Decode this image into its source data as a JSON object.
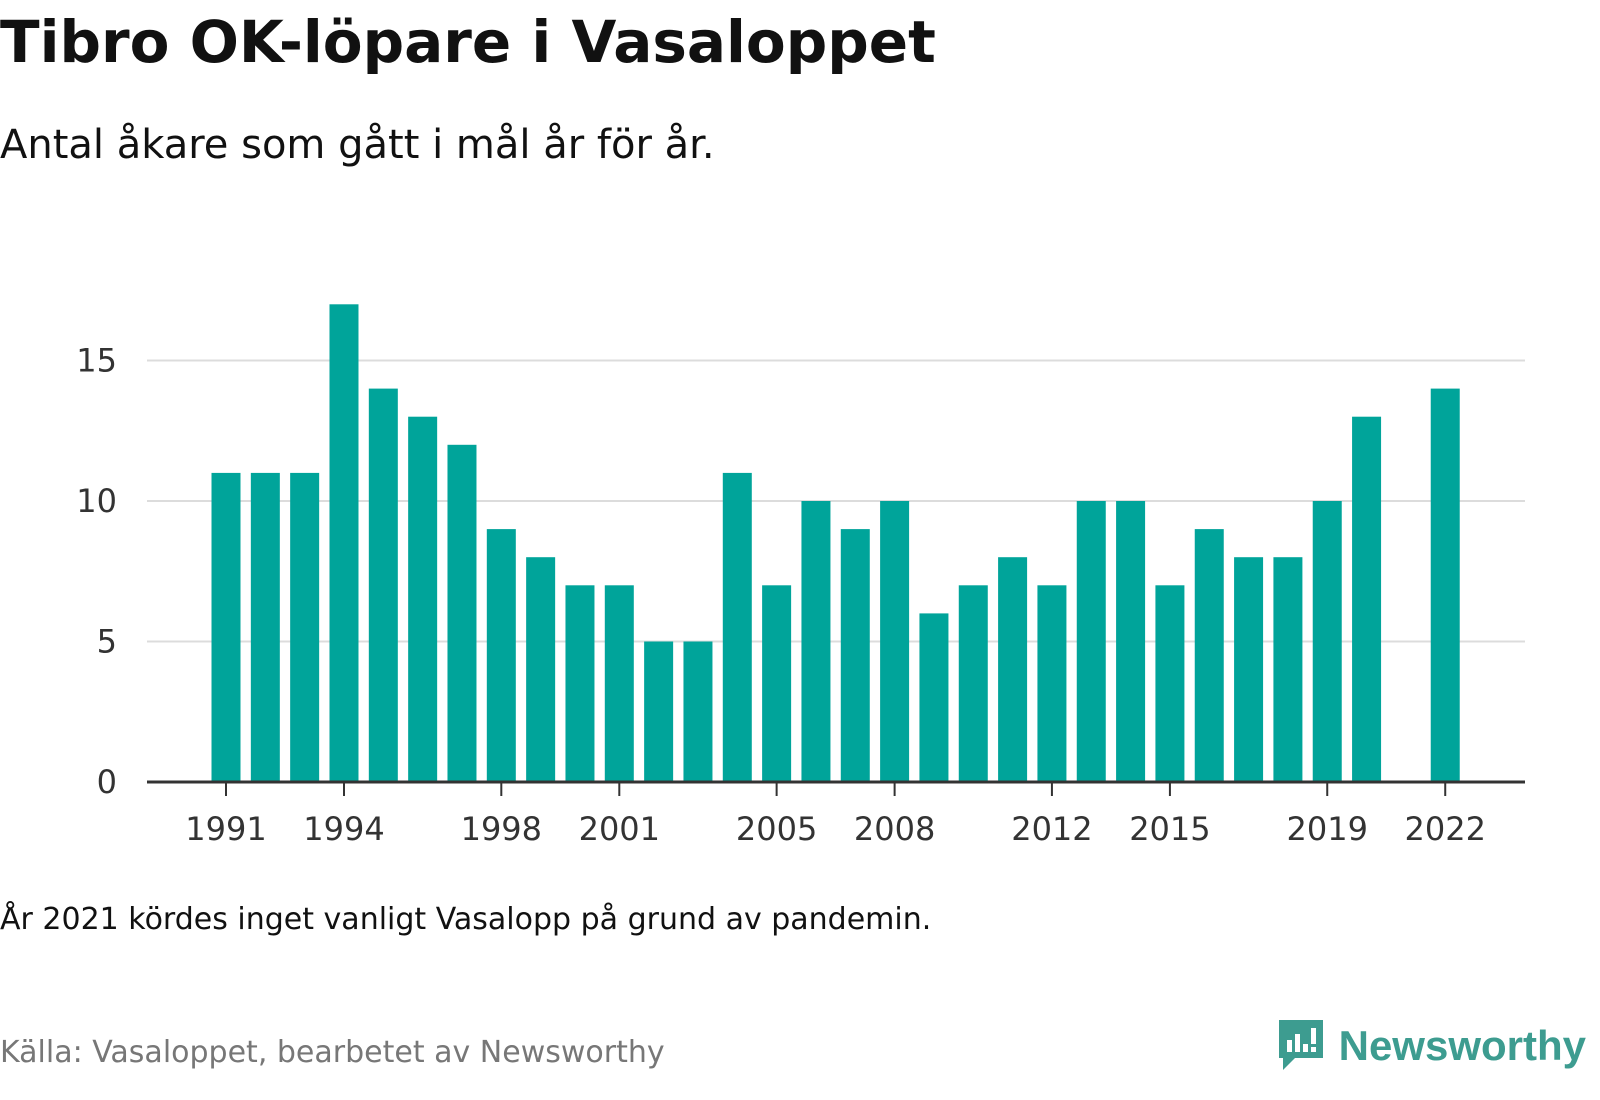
{
  "title": "Tibro OK-löpare i Vasaloppet",
  "subtitle": "Antal åkare som gått i mål år för år.",
  "note": "År 2021 kördes inget vanligt Vasalopp på grund av pandemin.",
  "source": "Källa: Vasaloppet, bearbetet av Newsworthy",
  "logo": {
    "text": "Newsworthy",
    "icon": "newsworthy-chart-icon",
    "color": "#3d9c90"
  },
  "colors": {
    "bar": "#00a49a",
    "grid": "#dcdcdc",
    "axis": "#333333",
    "tick_text": "#333333"
  },
  "chart_data": {
    "type": "bar",
    "x": [
      1991,
      1992,
      1993,
      1994,
      1995,
      1996,
      1997,
      1998,
      1999,
      2000,
      2001,
      2002,
      2003,
      2004,
      2005,
      2006,
      2007,
      2008,
      2009,
      2010,
      2011,
      2012,
      2013,
      2014,
      2015,
      2016,
      2017,
      2018,
      2019,
      2020,
      2021,
      2022
    ],
    "values": [
      11,
      11,
      11,
      17,
      14,
      13,
      12,
      9,
      8,
      7,
      7,
      5,
      5,
      11,
      7,
      10,
      9,
      10,
      6,
      7,
      8,
      7,
      10,
      10,
      7,
      9,
      8,
      8,
      10,
      13,
      null,
      14
    ],
    "x_tick_labels": [
      "1991",
      "1994",
      "1998",
      "2001",
      "2005",
      "2008",
      "2012",
      "2015",
      "2019",
      "2022"
    ],
    "y_ticks": [
      0,
      5,
      10,
      15
    ],
    "ylim": [
      0,
      17.5
    ],
    "grid": true,
    "title": "Tibro OK-löpare i Vasaloppet",
    "xlabel": "",
    "ylabel": ""
  }
}
